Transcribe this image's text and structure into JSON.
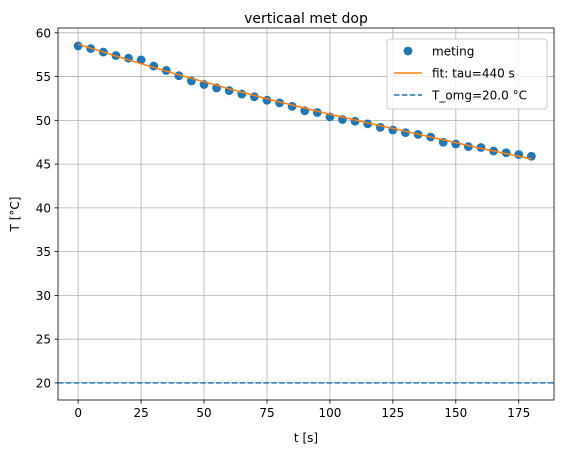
{
  "chart_data": {
    "type": "scatter",
    "title": "verticaal met dop",
    "xlabel": "t [s]",
    "ylabel": "T [°C]",
    "xlim": [
      -8,
      189
    ],
    "ylim": [
      18.05,
      60.55
    ],
    "x_ticks": [
      0,
      25,
      50,
      75,
      100,
      125,
      150,
      175
    ],
    "y_ticks": [
      20,
      25,
      30,
      35,
      40,
      45,
      50,
      55,
      60
    ],
    "grid": true,
    "legend_position": "top-right",
    "series": [
      {
        "name": "meting",
        "kind": "scatter",
        "color": "#1f77b4",
        "x": [
          0,
          5,
          10,
          15,
          20,
          25,
          30,
          35,
          40,
          45,
          50,
          55,
          60,
          65,
          70,
          75,
          80,
          85,
          90,
          95,
          100,
          105,
          110,
          115,
          120,
          125,
          130,
          135,
          140,
          145,
          150,
          155,
          160,
          165,
          170,
          175,
          180
        ],
        "y": [
          58.5,
          58.2,
          57.8,
          57.4,
          57.1,
          56.9,
          56.2,
          55.7,
          55.1,
          54.5,
          54.1,
          53.7,
          53.4,
          53.0,
          52.7,
          52.3,
          52.0,
          51.6,
          51.1,
          50.9,
          50.4,
          50.1,
          49.9,
          49.6,
          49.2,
          48.9,
          48.6,
          48.4,
          48.1,
          47.5,
          47.3,
          47.0,
          46.9,
          46.5,
          46.3,
          46.1,
          45.9
        ]
      },
      {
        "name": "fit: tau=440 s",
        "kind": "line",
        "color": "#ff7f0e",
        "x": [
          0,
          20,
          40,
          60,
          80,
          100,
          120,
          140,
          160,
          180
        ],
        "y": [
          58.7,
          56.9,
          55.2,
          53.6,
          52.1,
          50.7,
          49.4,
          48.1,
          46.8,
          45.6
        ]
      },
      {
        "name": "T_omg=20.0 °C",
        "kind": "hline",
        "color": "#1f77b4",
        "dash": "dashed",
        "y": 20.0
      }
    ]
  }
}
